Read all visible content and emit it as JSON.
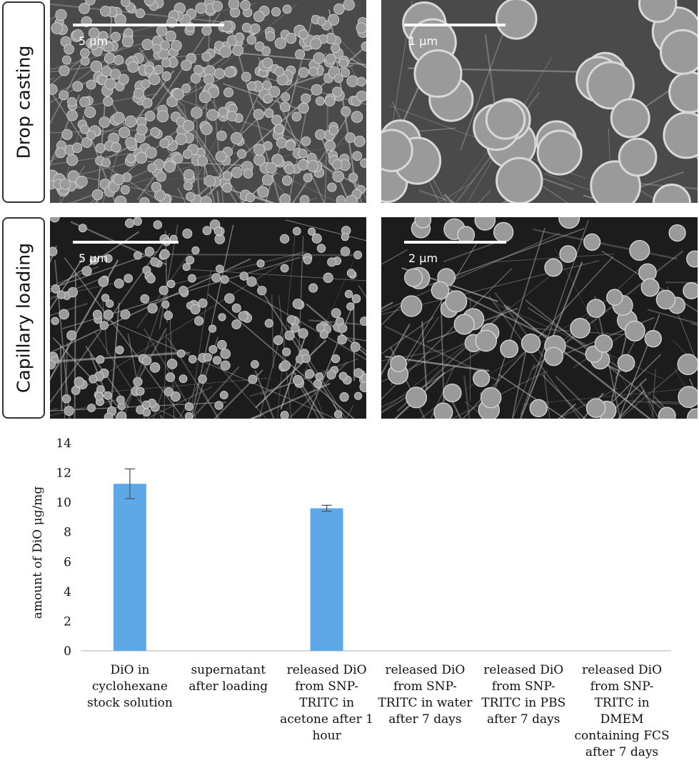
{
  "panels": [
    {
      "row_label": "Drop casting",
      "images": [
        {
          "scale": "5 μm",
          "density": "dense",
          "sphere_r": 7
        },
        {
          "scale": "1 μm",
          "density": "large",
          "sphere_r": 30
        }
      ]
    },
    {
      "row_label": "Capillary loading",
      "images": [
        {
          "scale": "5 μm",
          "density": "sparse",
          "sphere_r": 6
        },
        {
          "scale": "2 μm",
          "density": "medium",
          "sphere_r": 13
        }
      ]
    }
  ],
  "chart_data": {
    "type": "bar",
    "categories": [
      [
        "DiO in",
        "cyclohexane",
        "stock solution"
      ],
      [
        "supernatant",
        "after loading"
      ],
      [
        "released DiO",
        "from SNP-",
        "TRITC in",
        "acetone after 1",
        "hour"
      ],
      [
        "released DiO",
        "from SNP-",
        "TRITC in water",
        "after 7 days"
      ],
      [
        "released DiO",
        "from SNP-",
        "TRITC in PBS",
        "after 7 days"
      ],
      [
        "released DiO",
        "from SNP-",
        "TRITC in",
        "DMEM",
        "containing FCS",
        "after 7 days"
      ]
    ],
    "values": [
      11.25,
      0,
      9.6,
      0,
      0,
      0
    ],
    "errors": [
      1.0,
      0,
      0.2,
      0,
      0,
      0
    ],
    "ylabel": "amount of DiO μg/mg",
    "ylim": [
      0,
      14
    ],
    "yticks": [
      0,
      2,
      4,
      6,
      8,
      10,
      12,
      14
    ],
    "bar_color": "#5fa8e8",
    "grid": false
  }
}
